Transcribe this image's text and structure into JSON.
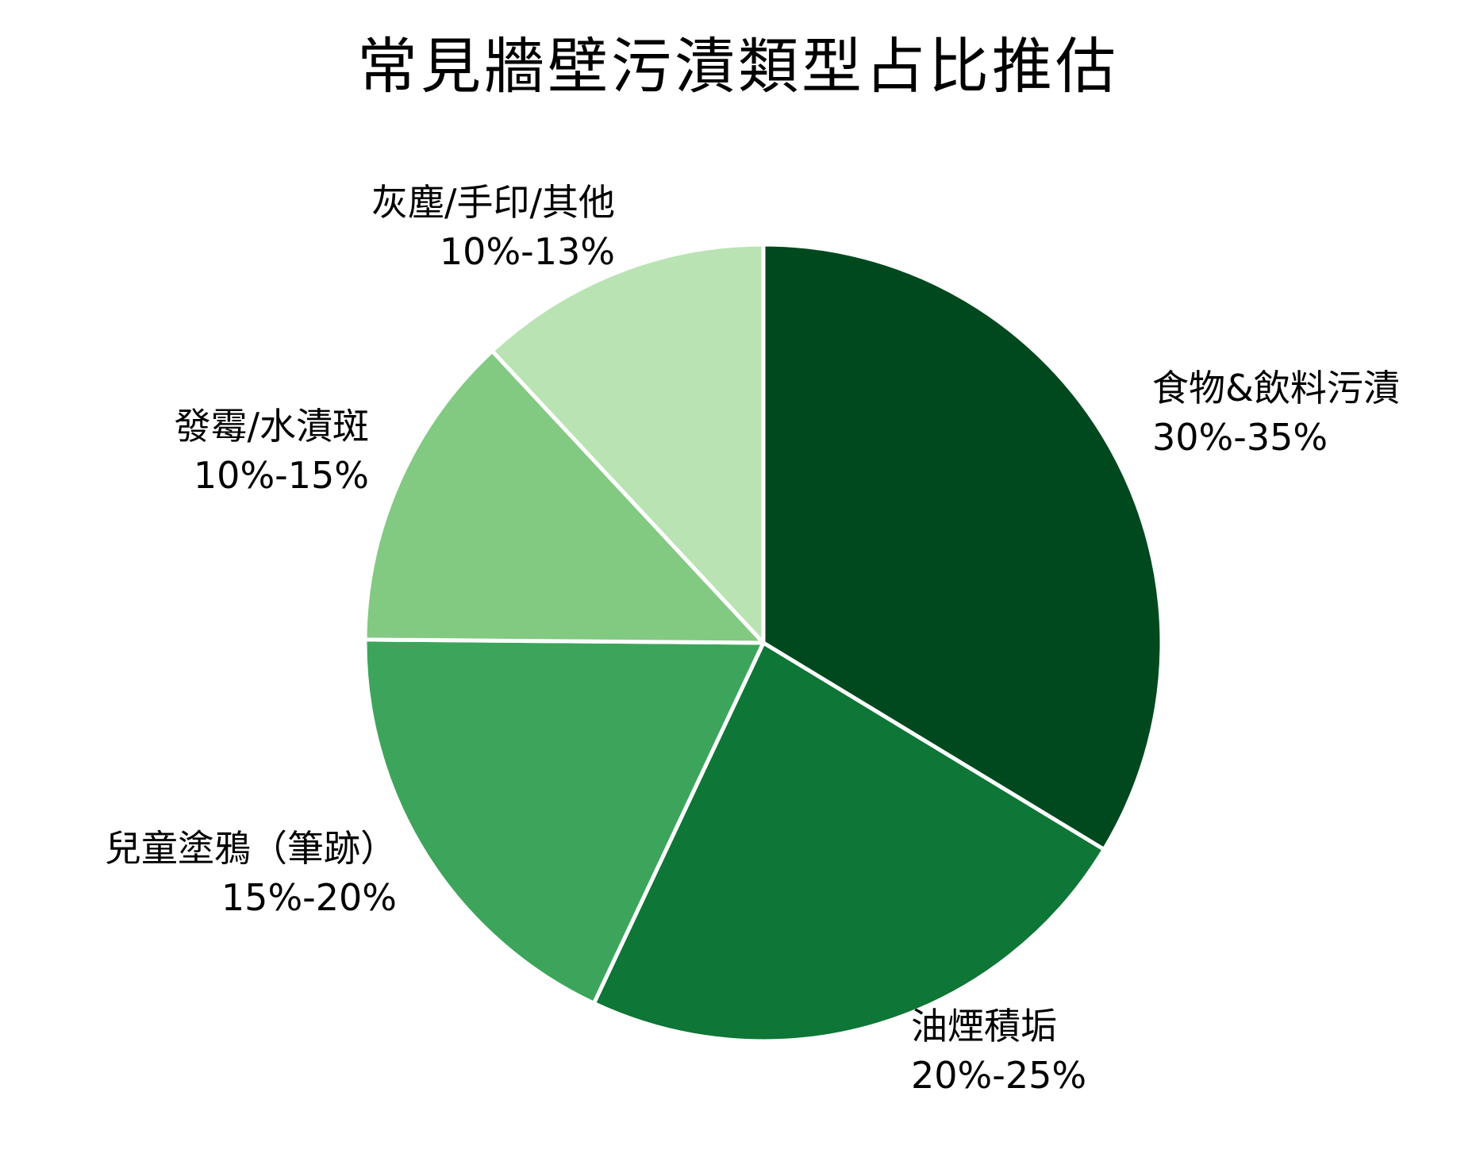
{
  "chart_data": {
    "type": "pie",
    "title": "常見牆壁污漬類型占比推估",
    "categories": [
      "食物&飲料污漬",
      "油煙積垢",
      "兒童塗鴉（筆跡）",
      "發霉/水漬斑",
      "灰塵/手印/其他"
    ],
    "ranges": [
      "30%-35%",
      "20%-25%",
      "15%-20%",
      "10%-15%",
      "10%-13%"
    ],
    "values": [
      32.5,
      22.5,
      17.5,
      12.5,
      11.5
    ],
    "colors": [
      "#00491e",
      "#0e7636",
      "#3da55b",
      "#82c981",
      "#b9e3b3"
    ],
    "start_angle": "12 o'clock",
    "direction": "clockwise",
    "legend": "none (labels placed outside slices)"
  },
  "labels": [
    {
      "name": "食物&飲料污漬",
      "range": "30%-35%"
    },
    {
      "name": "油煙積垢",
      "range": "20%-25%"
    },
    {
      "name": "兒童塗鴉（筆跡）",
      "range": "15%-20%"
    },
    {
      "name": "發霉/水漬斑",
      "range": "10%-15%"
    },
    {
      "name": "灰塵/手印/其他",
      "range": "10%-13%"
    }
  ]
}
